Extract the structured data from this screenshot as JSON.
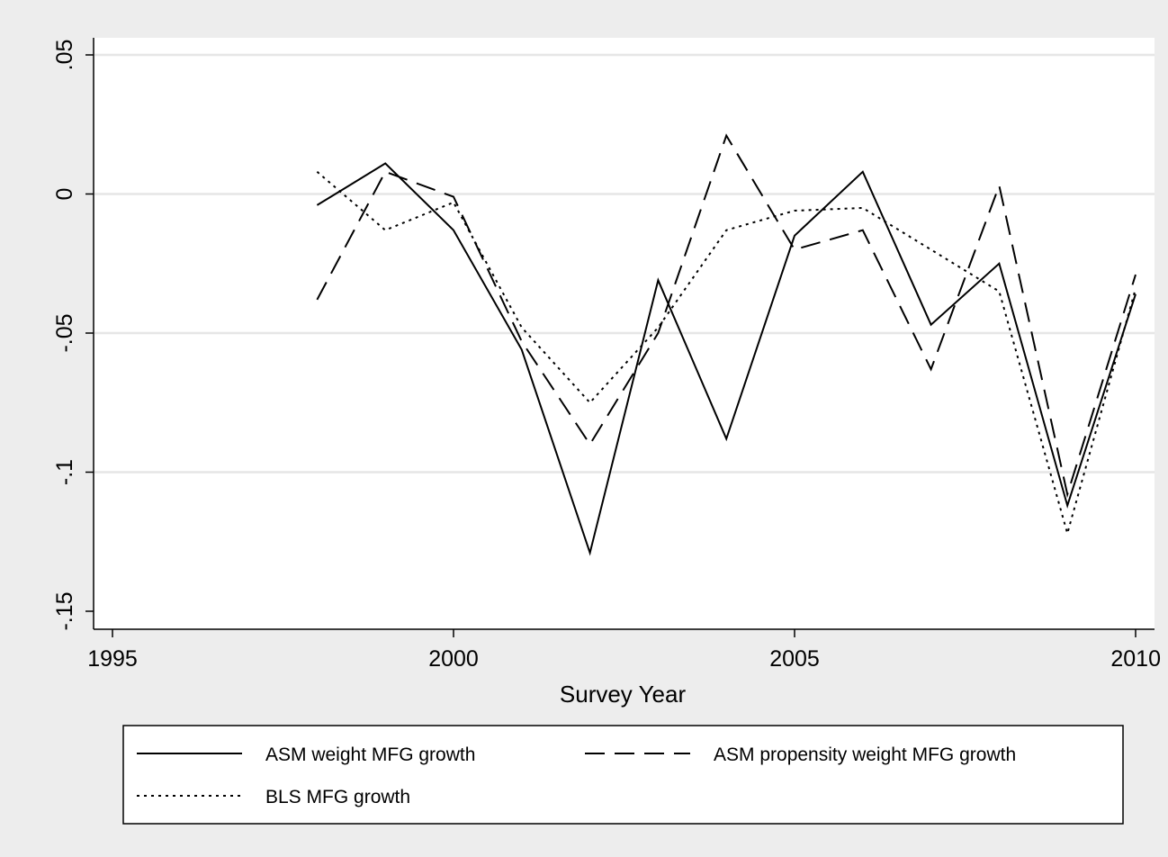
{
  "chart_data": {
    "type": "line",
    "title": "",
    "xlabel": "Survey Year",
    "ylabel": "",
    "xlim": [
      1995,
      2010
    ],
    "ylim": [
      -0.15,
      0.05
    ],
    "x_ticks": [
      {
        "value": 1995,
        "label": "1995"
      },
      {
        "value": 2000,
        "label": "2000"
      },
      {
        "value": 2005,
        "label": "2005"
      },
      {
        "value": 2010,
        "label": "2010"
      }
    ],
    "y_ticks": [
      {
        "value": 0.05,
        "label": ".05"
      },
      {
        "value": 0,
        "label": "0"
      },
      {
        "value": -0.05,
        "label": "-.05"
      },
      {
        "value": -0.1,
        "label": "-.1"
      },
      {
        "value": -0.15,
        "label": "-.15"
      }
    ],
    "grid": "horizontal",
    "legend_position": "bottom",
    "colors": {
      "background": "#ededed",
      "plot_background": "#ffffff",
      "grid": "#e6e6e6",
      "line": "#000000"
    },
    "x": [
      1998,
      1999,
      2000,
      2001,
      2002,
      2003,
      2004,
      2005,
      2006,
      2007,
      2008,
      2009,
      2010
    ],
    "series": [
      {
        "name": "ASM weight MFG growth",
        "style": "solid",
        "values": [
          -0.004,
          0.011,
          -0.013,
          -0.056,
          -0.129,
          -0.031,
          -0.088,
          -0.015,
          0.008,
          -0.047,
          -0.025,
          -0.112,
          -0.036
        ]
      },
      {
        "name": "ASM propensity weight MFG growth",
        "style": "dashed",
        "values": [
          -0.038,
          0.008,
          -0.001,
          -0.053,
          -0.09,
          -0.05,
          0.021,
          -0.02,
          -0.013,
          -0.063,
          0.003,
          -0.108,
          -0.029
        ]
      },
      {
        "name": "BLS MFG growth",
        "style": "dotted",
        "values": [
          0.008,
          -0.013,
          -0.003,
          -0.048,
          -0.075,
          -0.048,
          -0.013,
          -0.006,
          -0.005,
          -0.02,
          -0.035,
          -0.122,
          -0.034
        ]
      }
    ]
  }
}
